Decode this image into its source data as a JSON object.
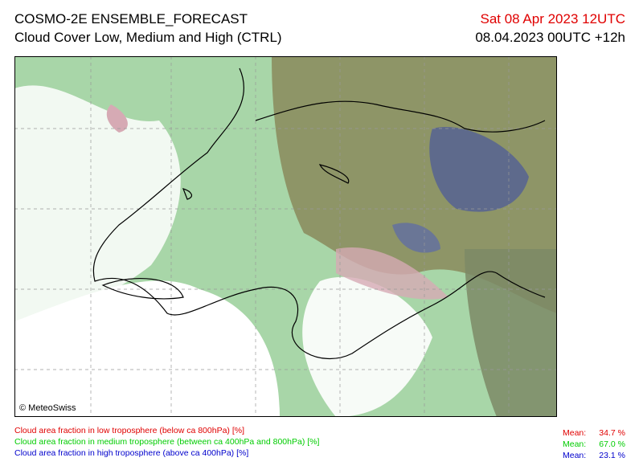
{
  "header": {
    "title": "COSMO-2E ENSEMBLE_FORECAST",
    "subtitle": "Cloud Cover Low, Medium and High (CTRL)",
    "valid_time": "Sat 08 Apr 2023 12UTC",
    "run_time": "08.04.2023 00UTC +12h"
  },
  "map": {
    "credit": "© MeteoSwiss"
  },
  "legend": [
    {
      "label": "Cloud area fraction in low troposphere (below ca 800hPa) [%]",
      "mean_label": "Mean:",
      "mean_value": "34.7 %",
      "color": "#e00000"
    },
    {
      "label": "Cloud area fraction in medium troposphere (between ca 400hPa and 800hPa) [%]",
      "mean_label": "Mean:",
      "mean_value": "67.0 %",
      "color": "#00cc00"
    },
    {
      "label": "Cloud area fraction in high troposphere (above ca 400hPa) [%]",
      "mean_label": "Mean:",
      "mean_value": "23.1 %",
      "color": "#0000cc"
    }
  ]
}
